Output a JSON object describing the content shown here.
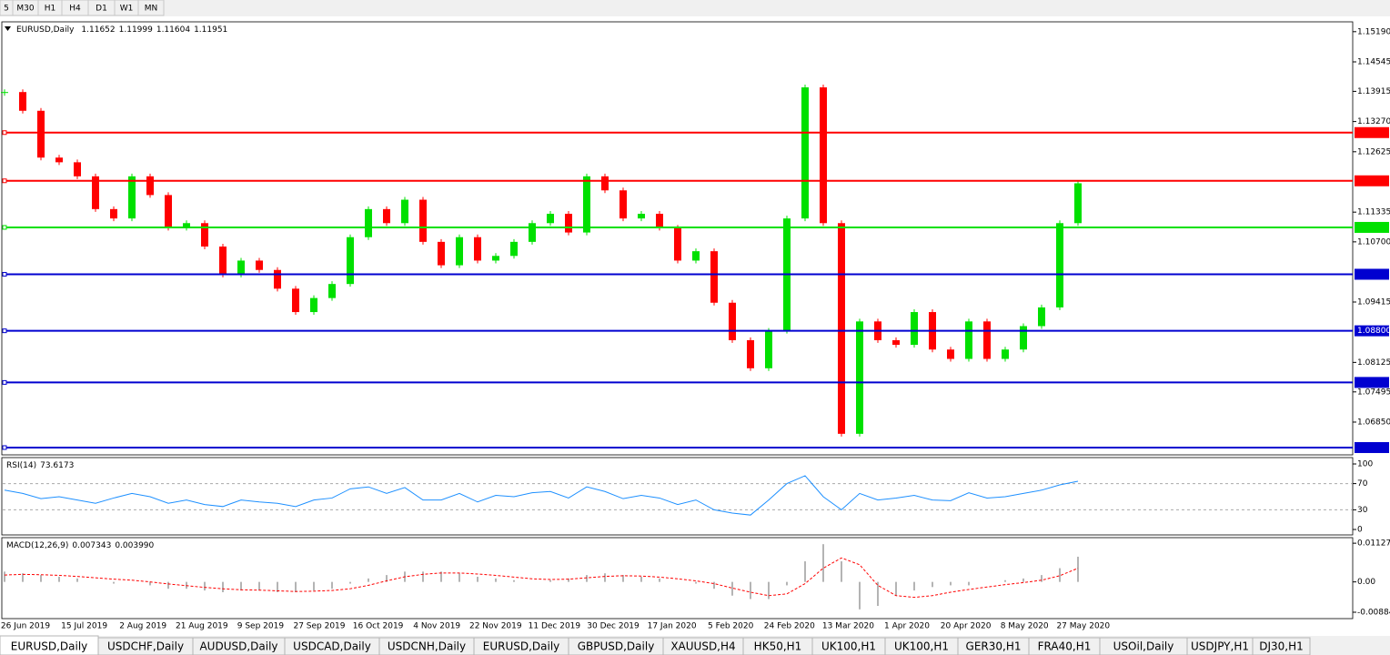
{
  "toolbar": {
    "timeframes": [
      "5",
      "M30",
      "H1",
      "H4",
      "D1",
      "W1",
      "MN"
    ]
  },
  "chart_data": [
    {
      "type": "candlestick",
      "title": "EURUSD,Daily",
      "quote": [
        1.11652,
        1.11999,
        1.11604,
        1.11951
      ],
      "closes": [
        1.139,
        1.135,
        1.125,
        1.124,
        1.121,
        1.114,
        1.112,
        1.121,
        1.117,
        1.11,
        1.111,
        1.106,
        1.1,
        1.103,
        1.101,
        1.097,
        1.092,
        1.095,
        1.098,
        1.108,
        1.114,
        1.111,
        1.116,
        1.107,
        1.102,
        1.108,
        1.103,
        1.104,
        1.107,
        1.111,
        1.113,
        1.109,
        1.121,
        1.118,
        1.112,
        1.113,
        1.11,
        1.103,
        1.105,
        1.094,
        1.086,
        1.08,
        1.088,
        1.112,
        1.14,
        1.111,
        1.066,
        1.09,
        1.086,
        1.085,
        1.092,
        1.084,
        1.082,
        1.09,
        1.082,
        1.084,
        1.089,
        1.093,
        1.111,
        1.11951
      ],
      "up_color": "#00e000",
      "down_color": "#ff0000",
      "ylim": [
        1.0615,
        1.154
      ],
      "yticks": [
        {
          "value": 1.1519,
          "label": "1.15190"
        },
        1.14545,
        1.13915,
        {
          "value": 1.1327,
          "label": "1.13270"
        },
        1.12625,
        1.11335,
        {
          "value": 1.107,
          "label": "1.10700"
        },
        1.09415,
        1.08125,
        1.07495,
        {
          "value": 1.0685,
          "label": "1.06850"
        }
      ],
      "levels": [
        {
          "value": 1.13034,
          "color": "#ff0000"
        },
        {
          "value": 1.12004,
          "color": "#ff0000"
        },
        {
          "value": 1.11009,
          "color": "#00e000"
        },
        {
          "value": 1.10008,
          "color": "#0000d0"
        },
        {
          "value": 1.088,
          "label": "1.08800",
          "color": "#0000d0"
        },
        {
          "value": 1.07697,
          "color": "#0000d0"
        },
        {
          "value": 1.06306,
          "color": "#0000d0"
        }
      ],
      "date_labels": [
        "26 Jun 2019",
        "15 Jul 2019",
        "2 Aug 2019",
        "21 Aug 2019",
        "9 Sep 2019",
        "27 Sep 2019",
        "16 Oct 2019",
        "4 Nov 2019",
        "22 Nov 2019",
        "11 Dec 2019",
        "30 Dec 2019",
        "17 Jan 2020",
        "5 Feb 2020",
        "24 Feb 2020",
        "13 Mar 2020",
        "1 Apr 2020",
        "20 Apr 2020",
        "8 May 2020",
        "27 May 2020"
      ]
    },
    {
      "type": "line",
      "title": "RSI(14)",
      "current": 73.6173,
      "color": "#1e90ff",
      "values": [
        60,
        55,
        47,
        50,
        45,
        40,
        48,
        55,
        50,
        40,
        45,
        38,
        35,
        45,
        42,
        40,
        35,
        45,
        48,
        62,
        65,
        55,
        64,
        45,
        45,
        55,
        42,
        52,
        50,
        56,
        58,
        48,
        65,
        58,
        47,
        52,
        48,
        38,
        45,
        30,
        25,
        22,
        45,
        70,
        82,
        50,
        30,
        55,
        45,
        48,
        52,
        45,
        44,
        56,
        48,
        50,
        55,
        60,
        68,
        73.6
      ],
      "ylim": [
        -8.3,
        109.7
      ],
      "yticks": [
        100,
        70,
        30,
        0
      ],
      "levels": [
        70,
        30
      ]
    },
    {
      "type": "macd",
      "title": "MACD(12,26,9)",
      "current": [
        0.007343,
        {
          "value": 0.00399,
          "label": "0.003990"
        }
      ],
      "color": "#b4b4b4",
      "signal_color": "#ff0000",
      "values": [
        0.003,
        0.0025,
        0.002,
        0.0015,
        0.001,
        0,
        -0.0005,
        0,
        -0.001,
        -0.002,
        -0.002,
        -0.0025,
        -0.003,
        -0.0025,
        -0.0025,
        -0.003,
        -0.003,
        -0.0025,
        -0.002,
        -0.0005,
        0.001,
        0.002,
        0.003,
        0.003,
        0.003,
        0.0025,
        0.0015,
        0.001,
        0.0005,
        0,
        0.0005,
        0.001,
        0.002,
        0.0025,
        0.002,
        0.0015,
        0.001,
        0,
        -0.0005,
        -0.002,
        -0.004,
        -0.005,
        -0.005,
        -0.001,
        0.006,
        0.011,
        0.006,
        -0.008,
        -0.007,
        -0.004,
        -0.0025,
        -0.0015,
        -0.001,
        -0.001,
        0,
        0.0005,
        0.001,
        0.002,
        0.004,
        0.007343
      ],
      "signal": [
        0.002,
        0.0022,
        0.0021,
        0.0019,
        0.0016,
        0.0012,
        0.0008,
        0.0005,
        0,
        -0.0006,
        -0.0011,
        -0.0016,
        -0.002,
        -0.0023,
        -0.0024,
        -0.0026,
        -0.0028,
        -0.0027,
        -0.0025,
        -0.002,
        -0.001,
        0.0003,
        0.0015,
        0.0022,
        0.0026,
        0.0026,
        0.0023,
        0.0019,
        0.0014,
        0.0009,
        0.0007,
        0.0008,
        0.0012,
        0.0016,
        0.0018,
        0.0017,
        0.0014,
        0.0009,
        0.0003,
        -0.0005,
        -0.0018,
        -0.003,
        -0.004,
        -0.0035,
        -0.0005,
        0.004,
        0.007,
        0.005,
        -0.001,
        -0.004,
        -0.0045,
        -0.004,
        -0.003,
        -0.0022,
        -0.0015,
        -0.0008,
        -0.0002,
        0.0005,
        0.0018,
        0.00399
      ],
      "ylim": [
        -0.0107,
        0.0129
      ],
      "yticks": [
        0.011277,
        {
          "value": 0,
          "label": "0.00"
        },
        -0.00884
      ]
    }
  ],
  "tabs": [
    "EURUSD,Daily",
    "USDCHF,Daily",
    "AUDUSD,Daily",
    "USDCAD,Daily",
    "USDCNH,Daily",
    "EURUSD,Daily",
    "GBPUSD,Daily",
    "XAUUSD,H4",
    "HK50,H1",
    "UK100,H1",
    "UK100,H1",
    "GER30,H1",
    "FRA40,H1",
    "USOil,Daily",
    "USDJPY,H1",
    "DJ30,H1"
  ]
}
